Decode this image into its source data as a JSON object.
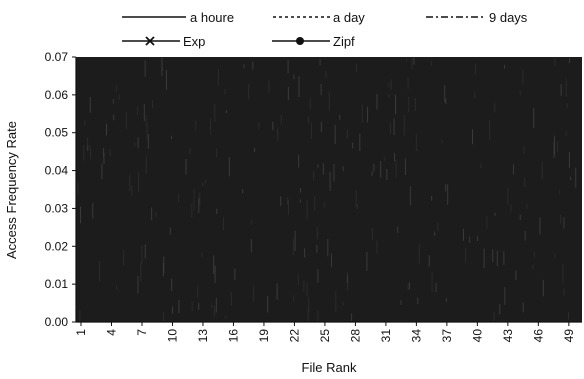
{
  "chart_data": {
    "type": "line",
    "xlabel": "File Rank",
    "ylabel": "Access Frequency Rate",
    "ylim": [
      0.0,
      0.07
    ],
    "yticks": [
      "0.00",
      "0.01",
      "0.02",
      "0.03",
      "0.04",
      "0.05",
      "0.06",
      "0.07"
    ],
    "x_range": [
      1,
      50
    ],
    "xticks": [
      "1",
      "4",
      "7",
      "10",
      "13",
      "16",
      "19",
      "22",
      "25",
      "28",
      "31",
      "34",
      "37",
      "40",
      "43",
      "46",
      "49"
    ],
    "grid": false,
    "legend_position": "top",
    "plot_background_color": "#1c1c1c",
    "series": [
      {
        "name": "a houre",
        "style": "solid"
      },
      {
        "name": "a day",
        "style": "dotted"
      },
      {
        "name": "9 days",
        "style": "dash-dot"
      },
      {
        "name": "Exp",
        "style": "solid",
        "marker": "x"
      },
      {
        "name": "Zipf",
        "style": "solid",
        "marker": "circle"
      }
    ]
  }
}
